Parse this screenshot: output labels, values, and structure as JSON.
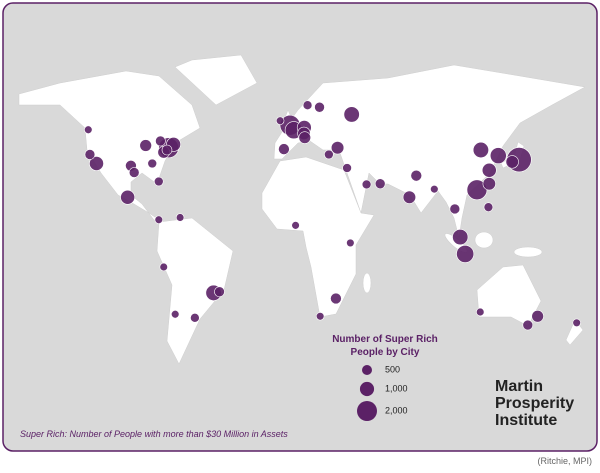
{
  "legend": {
    "title": "Number of Super Rich People by City",
    "items": [
      500,
      {
        "value": 1000,
        "label": "1,000"
      },
      {
        "value": 2000,
        "label": "2,000"
      }
    ]
  },
  "note": "Super Rich: Number of People with more than $30 Million in Assets",
  "logo": "Martin Prosperity Institute",
  "credit": "(Ritchie, MPI)",
  "bubble_color": "#5b2166",
  "bubbles": [
    {
      "lon": -74,
      "lat": 41,
      "value": 2000
    },
    {
      "lon": -71,
      "lat": 42.5,
      "value": 1000
    },
    {
      "lon": -77,
      "lat": 39,
      "value": 700
    },
    {
      "lon": -88,
      "lat": 42,
      "value": 700
    },
    {
      "lon": -79,
      "lat": 44,
      "value": 500
    },
    {
      "lon": -75,
      "lat": 40,
      "value": 500
    },
    {
      "lon": -118,
      "lat": 34,
      "value": 1000
    },
    {
      "lon": -122,
      "lat": 38,
      "value": 500
    },
    {
      "lon": -123,
      "lat": 49,
      "value": 300
    },
    {
      "lon": -97,
      "lat": 33,
      "value": 600
    },
    {
      "lon": -95,
      "lat": 30,
      "value": 500
    },
    {
      "lon": -84,
      "lat": 34,
      "value": 400
    },
    {
      "lon": -80,
      "lat": 26,
      "value": 400
    },
    {
      "lon": -99,
      "lat": 19,
      "value": 1000
    },
    {
      "lon": -80,
      "lat": 9,
      "value": 300
    },
    {
      "lon": -67,
      "lat": 10,
      "value": 300
    },
    {
      "lon": -46.6,
      "lat": -23.5,
      "value": 1200
    },
    {
      "lon": -43,
      "lat": -23,
      "value": 500
    },
    {
      "lon": -58,
      "lat": -34.6,
      "value": 400
    },
    {
      "lon": -70,
      "lat": -33,
      "value": 300
    },
    {
      "lon": -77,
      "lat": -12,
      "value": 300
    },
    {
      "lon": 0,
      "lat": 51,
      "value": 2000
    },
    {
      "lon": 2.3,
      "lat": 48.8,
      "value": 1500
    },
    {
      "lon": 8.7,
      "lat": 50,
      "value": 1000
    },
    {
      "lon": 8.5,
      "lat": 47.4,
      "value": 800
    },
    {
      "lon": 9,
      "lat": 45.5,
      "value": 700
    },
    {
      "lon": -3.7,
      "lat": 40.4,
      "value": 600
    },
    {
      "lon": 37.6,
      "lat": 55.8,
      "value": 1200
    },
    {
      "lon": 18,
      "lat": 59,
      "value": 500
    },
    {
      "lon": 10.7,
      "lat": 59.9,
      "value": 400
    },
    {
      "lon": 29,
      "lat": 41,
      "value": 800
    },
    {
      "lon": 23.7,
      "lat": 38,
      "value": 400
    },
    {
      "lon": -6,
      "lat": 53,
      "value": 300
    },
    {
      "lon": 34.8,
      "lat": 32,
      "value": 400
    },
    {
      "lon": 55,
      "lat": 25,
      "value": 500
    },
    {
      "lon": 46.7,
      "lat": 24.7,
      "value": 400
    },
    {
      "lon": 72.8,
      "lat": 19,
      "value": 800
    },
    {
      "lon": 77,
      "lat": 28.6,
      "value": 600
    },
    {
      "lon": 88,
      "lat": 22.6,
      "value": 300
    },
    {
      "lon": 100.5,
      "lat": 13.8,
      "value": 500
    },
    {
      "lon": 103.8,
      "lat": 1.3,
      "value": 1200
    },
    {
      "lon": 106.8,
      "lat": -6.2,
      "value": 1500
    },
    {
      "lon": 114,
      "lat": 22.3,
      "value": 2000
    },
    {
      "lon": 121.5,
      "lat": 25,
      "value": 800
    },
    {
      "lon": 121.5,
      "lat": 31,
      "value": 1000
    },
    {
      "lon": 116.4,
      "lat": 40,
      "value": 1200
    },
    {
      "lon": 127,
      "lat": 37.5,
      "value": 1300
    },
    {
      "lon": 139.7,
      "lat": 35.7,
      "value": 3000
    },
    {
      "lon": 135.5,
      "lat": 34.7,
      "value": 800
    },
    {
      "lon": 121,
      "lat": 14.6,
      "value": 400
    },
    {
      "lon": 151,
      "lat": -33.9,
      "value": 700
    },
    {
      "lon": 145,
      "lat": -37.8,
      "value": 500
    },
    {
      "lon": 116,
      "lat": -32,
      "value": 300
    },
    {
      "lon": 174.8,
      "lat": -36.8,
      "value": 300
    },
    {
      "lon": 28,
      "lat": -26,
      "value": 600
    },
    {
      "lon": 18.4,
      "lat": -33.9,
      "value": 300
    },
    {
      "lon": 3.4,
      "lat": 6.5,
      "value": 300
    },
    {
      "lon": 36.8,
      "lat": -1.3,
      "value": 300
    }
  ]
}
